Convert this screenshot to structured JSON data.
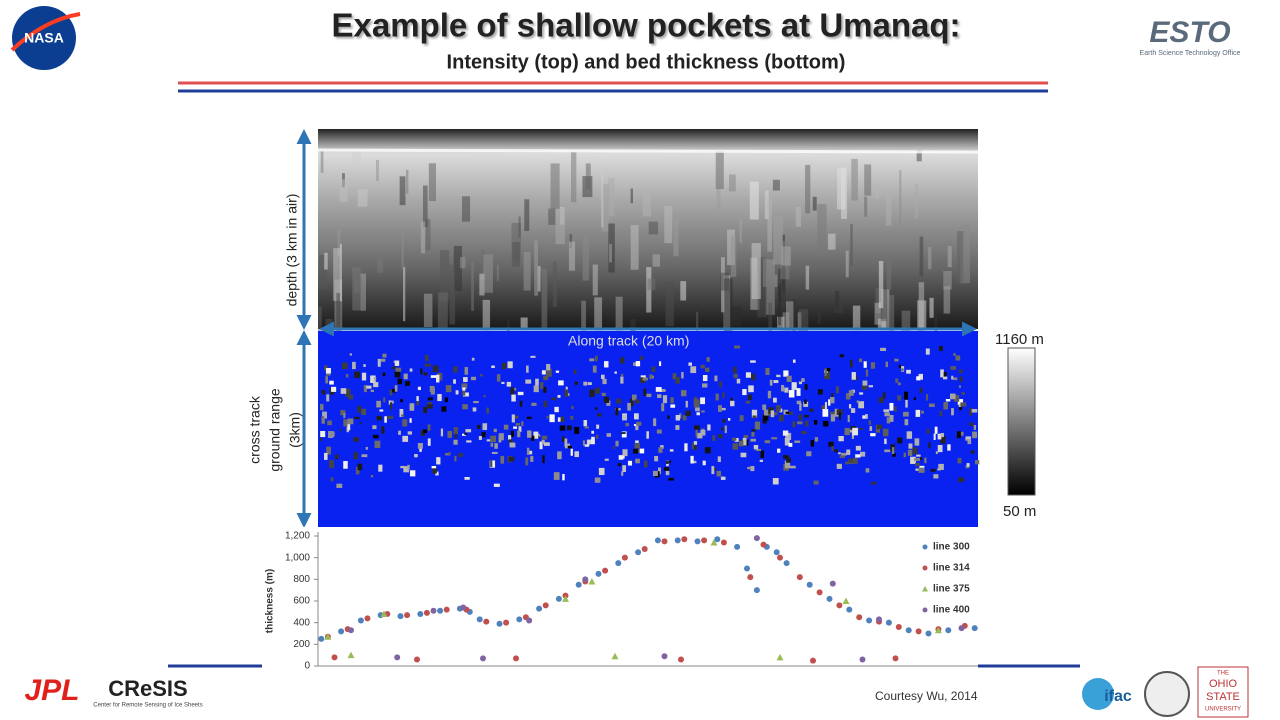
{
  "header": {
    "title": "Example of shallow pockets at Umanaq:",
    "subtitle": "Intensity (top) and bed thickness (bottom)"
  },
  "logos": {
    "nasa": "NASA",
    "esto": "ESTO",
    "esto_sub": "Earth Science Technology Office",
    "jpl": "JPL",
    "cresis": "CReSIS",
    "cresis_sub": "Center for Remote Sensing of Ice Sheets",
    "ifac": "ifac",
    "osu": [
      "THE",
      "OHIO",
      "STATE",
      "UNIVERSITY"
    ]
  },
  "figure": {
    "depth_label": "depth (3 km in air)",
    "cross_track_label": [
      "cross track",
      "ground range",
      "(3km)"
    ],
    "along_track_label": "Along track (20 km)",
    "colorbar_max": "1160 m",
    "colorbar_min": "50 m"
  },
  "thickness_chart": {
    "type": "scatter",
    "ylabel": "thickness (m)",
    "xlim": [
      0,
      20
    ],
    "ylim": [
      0,
      1200
    ],
    "yticks": [
      0,
      200,
      400,
      600,
      800,
      {
        "value": 1000,
        "label": "1,000"
      },
      {
        "value": 1200,
        "label": "1,200"
      }
    ],
    "series": [
      {
        "name": "line 300",
        "color": "#4f81bd",
        "x": [
          0.1,
          0.7,
          1.3,
          1.9,
          2.5,
          3.1,
          3.7,
          4.3,
          4.6,
          4.9,
          5.5,
          6.1,
          6.7,
          7.3,
          7.9,
          8.5,
          9.1,
          9.7,
          10.3,
          10.9,
          11.5,
          12.1,
          12.7,
          13.0,
          13.3,
          13.6,
          13.9,
          14.2,
          14.9,
          15.5,
          16.1,
          16.7,
          17.3,
          17.9,
          18.5,
          19.1,
          19.9
        ],
        "values": [
          250,
          320,
          420,
          470,
          460,
          480,
          510,
          530,
          500,
          430,
          390,
          430,
          530,
          620,
          750,
          850,
          950,
          1050,
          1160,
          1160,
          1150,
          1170,
          1100,
          900,
          700,
          1100,
          1050,
          950,
          750,
          620,
          520,
          420,
          400,
          330,
          300,
          330,
          350
        ]
      },
      {
        "name": "line 314",
        "color": "#c0504d",
        "x": [
          0.3,
          0.9,
          1.5,
          2.1,
          2.7,
          3.3,
          3.9,
          4.5,
          5.1,
          5.7,
          6.3,
          6.9,
          7.5,
          8.1,
          8.7,
          9.3,
          9.9,
          10.5,
          11.1,
          11.7,
          12.3,
          13.1,
          13.5,
          14.0,
          14.6,
          15.2,
          15.8,
          16.4,
          17.0,
          17.6,
          18.2,
          18.8,
          19.6,
          0.5,
          3.0,
          6.0,
          11.0,
          15.0,
          17.5
        ],
        "values": [
          270,
          340,
          440,
          480,
          470,
          490,
          520,
          520,
          410,
          400,
          450,
          560,
          650,
          780,
          880,
          1000,
          1080,
          1150,
          1170,
          1160,
          1140,
          820,
          1120,
          1000,
          820,
          680,
          560,
          450,
          410,
          360,
          320,
          340,
          370,
          80,
          60,
          70,
          60,
          50,
          70
        ]
      },
      {
        "name": "line 375",
        "color": "#9bbb59",
        "x": [
          0.3,
          2.0,
          7.5,
          8.3,
          12.0,
          16.0,
          18.8,
          1.0,
          9.0,
          14.0
        ],
        "values": [
          270,
          480,
          620,
          780,
          1140,
          600,
          330,
          100,
          90,
          80
        ]
      },
      {
        "name": "line 400",
        "color": "#8064a2",
        "x": [
          1.0,
          3.5,
          4.4,
          6.4,
          8.1,
          13.3,
          15.6,
          17.0,
          19.5,
          2.4,
          5.0,
          10.5,
          16.5
        ],
        "values": [
          330,
          510,
          540,
          420,
          800,
          1180,
          760,
          430,
          350,
          80,
          70,
          90,
          60
        ]
      }
    ]
  },
  "credit": "Courtesy Wu, 2014"
}
